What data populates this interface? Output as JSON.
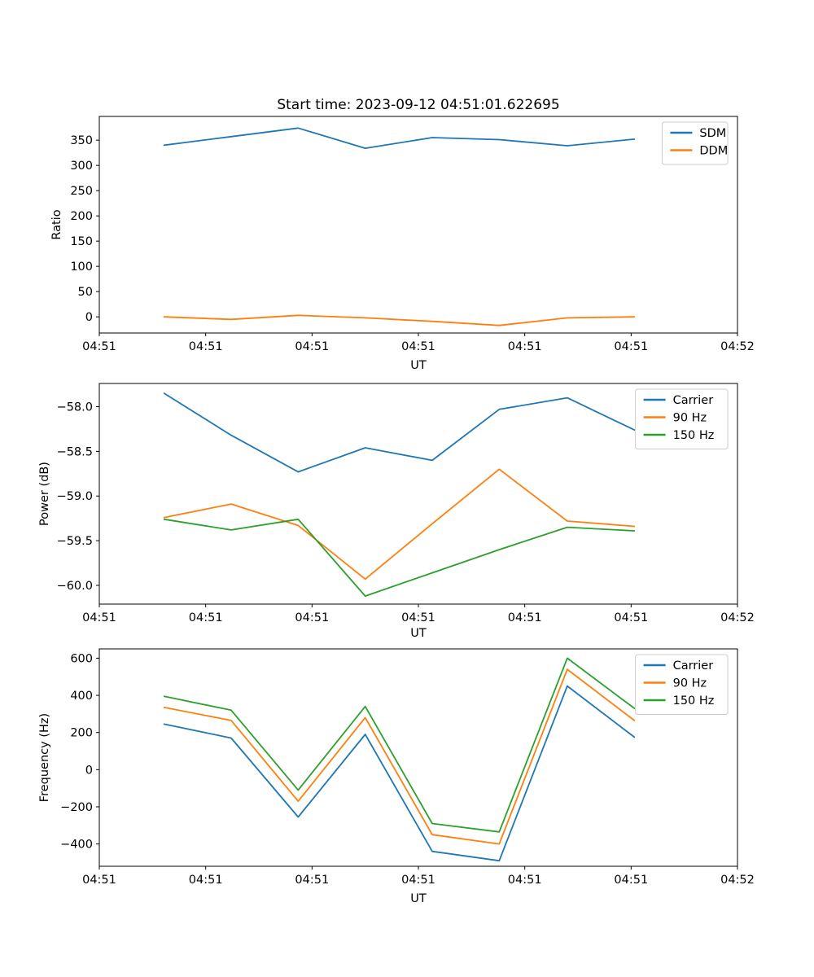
{
  "figure": {
    "title": "Start time: 2023-09-12 04:51:01.622695",
    "background": "#ffffff"
  },
  "chart_data": [
    {
      "type": "line",
      "title": "Start time: 2023-09-12 04:51:01.622695",
      "xlabel": "UT",
      "ylabel": "Ratio",
      "x_seconds_after_0451": [
        6.1,
        12.4,
        18.7,
        25.0,
        31.3,
        37.6,
        44.0,
        50.3
      ],
      "xlim_seconds": [
        0,
        60
      ],
      "xticks": {
        "seconds": [
          0,
          10,
          20,
          30,
          40,
          50,
          60
        ],
        "labels": [
          "04:51",
          "04:51",
          "04:51",
          "04:51",
          "04:51",
          "04:51",
          "04:52"
        ]
      },
      "ylim": [
        -32,
        397
      ],
      "yticks": {
        "values": [
          0,
          50,
          100,
          150,
          200,
          250,
          300,
          350
        ],
        "labels": [
          "0",
          "50",
          "100",
          "150",
          "200",
          "250",
          "300",
          "350"
        ]
      },
      "grid": false,
      "legend_position": "upper right",
      "series": [
        {
          "name": "SDM",
          "color": "#1f77b4",
          "values": [
            340,
            357,
            374,
            334,
            355,
            351,
            339,
            352
          ]
        },
        {
          "name": "DDM",
          "color": "#ff7f0e",
          "values": [
            0,
            -5,
            3,
            -2,
            -9,
            -17,
            -2,
            0
          ]
        }
      ]
    },
    {
      "type": "line",
      "title": "",
      "xlabel": "UT",
      "ylabel": "Power (dB)",
      "x_seconds_after_0451": [
        6.1,
        12.4,
        18.7,
        25.0,
        31.3,
        37.6,
        44.0,
        50.3
      ],
      "xlim_seconds": [
        0,
        60
      ],
      "xticks": {
        "seconds": [
          0,
          10,
          20,
          30,
          40,
          50,
          60
        ],
        "labels": [
          "04:51",
          "04:51",
          "04:51",
          "04:51",
          "04:51",
          "04:51",
          "04:52"
        ]
      },
      "ylim": [
        -60.21,
        -57.74
      ],
      "yticks": {
        "values": [
          -58.0,
          -58.5,
          -59.0,
          -59.5,
          -60.0
        ],
        "labels": [
          "−58.0",
          "−58.5",
          "−59.0",
          "−59.5",
          "−60.0"
        ]
      },
      "grid": false,
      "legend_position": "upper right",
      "series": [
        {
          "name": "Carrier",
          "color": "#1f77b4",
          "values": [
            -57.85,
            -58.32,
            -58.73,
            -58.46,
            -58.6,
            -58.03,
            -57.9,
            -58.26
          ]
        },
        {
          "name": "90 Hz",
          "color": "#ff7f0e",
          "values": [
            -59.24,
            -59.09,
            -59.33,
            -59.93,
            -59.31,
            -58.7,
            -59.28,
            -59.34
          ]
        },
        {
          "name": "150 Hz",
          "color": "#2ca02c",
          "values": [
            -59.26,
            -59.38,
            -59.26,
            -60.12,
            -59.86,
            -59.6,
            -59.35,
            -59.39
          ]
        }
      ]
    },
    {
      "type": "line",
      "title": "",
      "xlabel": "UT",
      "ylabel": "Frequency (Hz)",
      "x_seconds_after_0451": [
        6.1,
        12.4,
        18.7,
        25.0,
        31.3,
        37.6,
        44.0,
        50.3
      ],
      "xlim_seconds": [
        0,
        60
      ],
      "xticks": {
        "seconds": [
          0,
          10,
          20,
          30,
          40,
          50,
          60
        ],
        "labels": [
          "04:51",
          "04:51",
          "04:51",
          "04:51",
          "04:51",
          "04:51",
          "04:52"
        ]
      },
      "ylim": [
        -520,
        650
      ],
      "yticks": {
        "values": [
          600,
          400,
          200,
          0,
          -200,
          -400
        ],
        "labels": [
          "600",
          "400",
          "200",
          "0",
          "−200",
          "−400"
        ]
      },
      "grid": false,
      "legend_position": "upper right",
      "series": [
        {
          "name": "Carrier",
          "color": "#1f77b4",
          "values": [
            245,
            170,
            -255,
            190,
            -440,
            -490,
            450,
            175
          ]
        },
        {
          "name": "90 Hz",
          "color": "#ff7f0e",
          "values": [
            335,
            265,
            -170,
            280,
            -350,
            -400,
            540,
            265
          ]
        },
        {
          "name": "150 Hz",
          "color": "#2ca02c",
          "values": [
            395,
            320,
            -110,
            340,
            -290,
            -335,
            600,
            330
          ]
        }
      ]
    }
  ]
}
